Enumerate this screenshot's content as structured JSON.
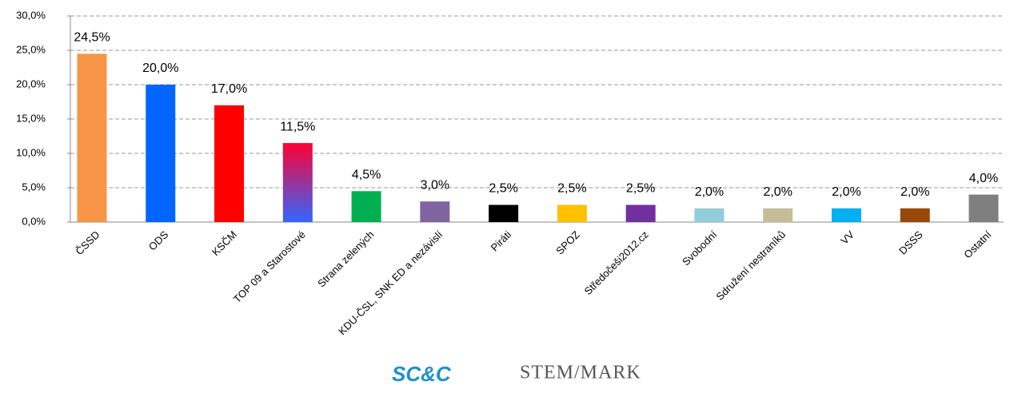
{
  "chart_data": {
    "type": "bar",
    "categories": [
      "ČSSD",
      "ODS",
      "KSČM",
      "TOP 09 a Starostové",
      "Strana zelených",
      "KDU-ČSL, SNK ED a nezávislí",
      "Piráti",
      "SPOZ",
      "Středočeši2012.cz",
      "Svobodní",
      "Sdružení nestraníků",
      "VV",
      "DSSS",
      "Ostatní"
    ],
    "values": [
      24.5,
      20.0,
      17.0,
      11.5,
      4.5,
      3.0,
      2.5,
      2.5,
      2.5,
      2.0,
      2.0,
      2.0,
      2.0,
      4.0
    ],
    "value_labels": [
      "24,5%",
      "20,0%",
      "17,0%",
      "11,5%",
      "4,5%",
      "3,0%",
      "2,5%",
      "2,5%",
      "2,5%",
      "2,0%",
      "2,0%",
      "2,0%",
      "2,0%",
      "4,0%"
    ],
    "colors": [
      "#f79646",
      "#0066ff",
      "#ff0000",
      [
        "#ff0033",
        "#3366ff"
      ],
      "#00b050",
      "#8064a2",
      "#000000",
      "#ffc000",
      "#7030a0",
      "#92cddc",
      "#c4bd97",
      "#00b0f0",
      "#984807",
      "#7f7f7f"
    ],
    "ylim": [
      0,
      30
    ],
    "yticks": [
      {
        "value": 0,
        "label": "0,0%"
      },
      {
        "value": 5,
        "label": "5,0%"
      },
      {
        "value": 10,
        "label": "10,0%"
      },
      {
        "value": 15,
        "label": "15,0%"
      },
      {
        "value": 20,
        "label": "20,0%"
      },
      {
        "value": 25,
        "label": "25,0%"
      },
      {
        "value": 30,
        "label": "30,0%"
      }
    ],
    "grid": true
  },
  "footer": {
    "logos": [
      "SC&C",
      "STEM/MARK"
    ]
  }
}
